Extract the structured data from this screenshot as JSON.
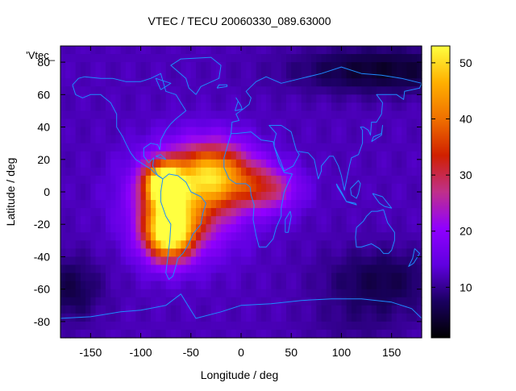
{
  "chart_data": {
    "type": "heatmap",
    "title": "VTEC / TECU 20060330_089.63000",
    "xlabel": "Longitude / deg",
    "ylabel": "Latitude / deg",
    "xlim": [
      -180,
      180
    ],
    "ylim": [
      -90,
      90
    ],
    "xticks": [
      -150,
      -100,
      -50,
      0,
      50,
      100,
      150
    ],
    "yticks": [
      80,
      60,
      40,
      20,
      0,
      -20,
      -40,
      -60,
      -80
    ],
    "series_label": "'Vtec_",
    "colorbar": {
      "range": [
        1,
        53
      ],
      "ticks": [
        10,
        20,
        30,
        40,
        50
      ],
      "palette": [
        "#000000",
        "#1a0060",
        "#6000e0",
        "#9000ff",
        "#c0308a",
        "#d02000",
        "#f07000",
        "#ffb000",
        "#ffff40"
      ]
    },
    "field": {
      "background": 12,
      "peaks": [
        {
          "lon": -72,
          "lat": -25,
          "value": 52,
          "sig_lon": 17,
          "sig_lat": 12
        },
        {
          "lon": -78,
          "lat": 5,
          "value": 48,
          "sig_lon": 13,
          "sig_lat": 9
        },
        {
          "lon": -25,
          "lat": 12,
          "value": 38,
          "sig_lon": 26,
          "sig_lat": 13
        },
        {
          "lon": -55,
          "lat": -5,
          "value": 36,
          "sig_lon": 34,
          "sig_lat": 20
        },
        {
          "lon": 25,
          "lat": 2,
          "value": 28,
          "sig_lon": 22,
          "sig_lat": 10
        }
      ],
      "lows": [
        {
          "lon": 115,
          "lat": -82,
          "value": 10,
          "sig_lon": 38,
          "sig_lat": 10
        },
        {
          "lon": 140,
          "lat": -55,
          "value": 6,
          "sig_lon": 40,
          "sig_lat": 14
        },
        {
          "lon": -170,
          "lat": -60,
          "value": 6,
          "sig_lon": 22,
          "sig_lat": 14
        },
        {
          "lon": 140,
          "lat": 75,
          "value": 4,
          "sig_lon": 60,
          "sig_lat": 10
        }
      ]
    },
    "coastlines": [
      [
        [
          -168,
          66
        ],
        [
          -162,
          70
        ],
        [
          -156,
          71
        ],
        [
          -140,
          70
        ],
        [
          -128,
          70
        ],
        [
          -115,
          68
        ],
        [
          -100,
          68
        ],
        [
          -90,
          70
        ],
        [
          -80,
          73
        ],
        [
          -75,
          62
        ],
        [
          -65,
          60
        ],
        [
          -60,
          55
        ],
        [
          -55,
          50
        ],
        [
          -65,
          45
        ],
        [
          -70,
          42
        ],
        [
          -75,
          38
        ],
        [
          -80,
          32
        ],
        [
          -81,
          26
        ],
        [
          -83,
          29
        ],
        [
          -90,
          30
        ],
        [
          -97,
          27
        ],
        [
          -97,
          22
        ],
        [
          -92,
          18
        ],
        [
          -87,
          21
        ],
        [
          -88,
          16
        ],
        [
          -83,
          10
        ],
        [
          -78,
          8
        ],
        [
          -80,
          9
        ],
        [
          -85,
          11
        ],
        [
          -90,
          14
        ],
        [
          -95,
          16
        ],
        [
          -105,
          20
        ],
        [
          -110,
          24
        ],
        [
          -115,
          30
        ],
        [
          -118,
          34
        ],
        [
          -124,
          40
        ],
        [
          -124,
          48
        ],
        [
          -130,
          55
        ],
        [
          -140,
          60
        ],
        [
          -150,
          60
        ],
        [
          -158,
          58
        ],
        [
          -165,
          60
        ],
        [
          -168,
          66
        ]
      ],
      [
        [
          -78,
          8
        ],
        [
          -72,
          11
        ],
        [
          -63,
          10
        ],
        [
          -55,
          6
        ],
        [
          -50,
          0
        ],
        [
          -40,
          -3
        ],
        [
          -35,
          -7
        ],
        [
          -38,
          -13
        ],
        [
          -40,
          -20
        ],
        [
          -48,
          -26
        ],
        [
          -53,
          -33
        ],
        [
          -58,
          -38
        ],
        [
          -63,
          -41
        ],
        [
          -65,
          -46
        ],
        [
          -68,
          -52
        ],
        [
          -72,
          -54
        ],
        [
          -75,
          -50
        ],
        [
          -73,
          -40
        ],
        [
          -71,
          -30
        ],
        [
          -70,
          -20
        ],
        [
          -75,
          -15
        ],
        [
          -80,
          -6
        ],
        [
          -80,
          0
        ],
        [
          -78,
          8
        ]
      ],
      [
        [
          -10,
          36
        ],
        [
          -17,
          21
        ],
        [
          -17,
          15
        ],
        [
          -12,
          8
        ],
        [
          -5,
          5
        ],
        [
          5,
          5
        ],
        [
          9,
          3
        ],
        [
          10,
          -2
        ],
        [
          13,
          -8
        ],
        [
          12,
          -17
        ],
        [
          15,
          -27
        ],
        [
          18,
          -34
        ],
        [
          25,
          -34
        ],
        [
          32,
          -29
        ],
        [
          35,
          -22
        ],
        [
          40,
          -15
        ],
        [
          40,
          -10
        ],
        [
          43,
          0
        ],
        [
          51,
          11
        ],
        [
          43,
          12
        ],
        [
          38,
          18
        ],
        [
          33,
          28
        ],
        [
          32,
          31
        ],
        [
          20,
          32
        ],
        [
          10,
          37
        ],
        [
          -5,
          36
        ],
        [
          -10,
          36
        ]
      ],
      [
        [
          -10,
          36
        ],
        [
          -9,
          43
        ],
        [
          -2,
          44
        ],
        [
          -5,
          48
        ],
        [
          2,
          51
        ],
        [
          8,
          54
        ],
        [
          10,
          58
        ],
        [
          5,
          62
        ],
        [
          15,
          68
        ],
        [
          25,
          71
        ],
        [
          40,
          67
        ],
        [
          60,
          70
        ],
        [
          80,
          73
        ],
        [
          100,
          77
        ],
        [
          120,
          73
        ],
        [
          140,
          72
        ],
        [
          160,
          70
        ],
        [
          180,
          67
        ]
      ],
      [
        [
          33,
          31
        ],
        [
          35,
          36
        ],
        [
          28,
          41
        ],
        [
          40,
          41
        ],
        [
          50,
          37
        ],
        [
          55,
          26
        ],
        [
          58,
          23
        ],
        [
          52,
          16
        ],
        [
          43,
          13
        ],
        [
          38,
          21
        ],
        [
          33,
          28
        ],
        [
          33,
          31
        ]
      ],
      [
        [
          57,
          25
        ],
        [
          67,
          24
        ],
        [
          73,
          20
        ],
        [
          77,
          8
        ],
        [
          80,
          13
        ],
        [
          80,
          16
        ],
        [
          88,
          22
        ],
        [
          92,
          22
        ],
        [
          97,
          16
        ],
        [
          100,
          10
        ],
        [
          103,
          1
        ],
        [
          106,
          10
        ],
        [
          108,
          16
        ],
        [
          110,
          21
        ],
        [
          117,
          23
        ],
        [
          121,
          30
        ],
        [
          121,
          38
        ],
        [
          119,
          40
        ],
        [
          122,
          40
        ],
        [
          127,
          38
        ],
        [
          129,
          35
        ],
        [
          130,
          43
        ],
        [
          135,
          43
        ],
        [
          140,
          48
        ],
        [
          141,
          55
        ],
        [
          135,
          60
        ],
        [
          143,
          60
        ],
        [
          155,
          60
        ],
        [
          162,
          57
        ],
        [
          163,
          62
        ],
        [
          178,
          64
        ],
        [
          180,
          67
        ]
      ],
      [
        [
          115,
          -22
        ],
        [
          114,
          -28
        ],
        [
          115,
          -34
        ],
        [
          120,
          -34
        ],
        [
          130,
          -32
        ],
        [
          138,
          -35
        ],
        [
          142,
          -38
        ],
        [
          147,
          -38
        ],
        [
          150,
          -36
        ],
        [
          153,
          -30
        ],
        [
          153,
          -25
        ],
        [
          146,
          -19
        ],
        [
          142,
          -11
        ],
        [
          136,
          -12
        ],
        [
          130,
          -12
        ],
        [
          125,
          -15
        ],
        [
          122,
          -18
        ],
        [
          115,
          -22
        ]
      ],
      [
        [
          -180,
          -78
        ],
        [
          -150,
          -77
        ],
        [
          -120,
          -74
        ],
        [
          -100,
          -73
        ],
        [
          -75,
          -70
        ],
        [
          -60,
          -63
        ],
        [
          -58,
          -65
        ],
        [
          -45,
          -78
        ],
        [
          -20,
          -74
        ],
        [
          0,
          -70
        ],
        [
          30,
          -69
        ],
        [
          60,
          -67
        ],
        [
          90,
          -66
        ],
        [
          120,
          -66
        ],
        [
          150,
          -68
        ],
        [
          170,
          -72
        ],
        [
          180,
          -78
        ]
      ],
      [
        [
          -45,
          60
        ],
        [
          -52,
          64
        ],
        [
          -55,
          70
        ],
        [
          -70,
          78
        ],
        [
          -60,
          82
        ],
        [
          -30,
          83
        ],
        [
          -20,
          78
        ],
        [
          -22,
          70
        ],
        [
          -40,
          65
        ],
        [
          -45,
          60
        ]
      ],
      [
        [
          -6,
          50
        ],
        [
          -3,
          56
        ],
        [
          -5,
          58
        ],
        [
          0,
          53
        ],
        [
          1,
          51
        ],
        [
          -6,
          50
        ]
      ],
      [
        [
          130,
          31
        ],
        [
          132,
          34
        ],
        [
          136,
          35
        ],
        [
          140,
          36
        ],
        [
          141,
          41
        ],
        [
          140,
          35
        ],
        [
          135,
          33
        ],
        [
          130,
          31
        ]
      ],
      [
        [
          95,
          5
        ],
        [
          100,
          0
        ],
        [
          105,
          -6
        ],
        [
          102,
          -3
        ],
        [
          96,
          3
        ],
        [
          95,
          5
        ]
      ],
      [
        [
          105,
          -6
        ],
        [
          115,
          -8
        ],
        [
          114,
          -7
        ],
        [
          106,
          -6
        ],
        [
          105,
          -6
        ]
      ],
      [
        [
          109,
          2
        ],
        [
          117,
          7
        ],
        [
          119,
          5
        ],
        [
          117,
          -1
        ],
        [
          115,
          -4
        ],
        [
          110,
          -2
        ],
        [
          109,
          2
        ]
      ],
      [
        [
          131,
          -1
        ],
        [
          141,
          -3
        ],
        [
          150,
          -10
        ],
        [
          143,
          -9
        ],
        [
          138,
          -7
        ],
        [
          131,
          -1
        ]
      ],
      [
        [
          44,
          -25
        ],
        [
          47,
          -25
        ],
        [
          50,
          -15
        ],
        [
          49,
          -12
        ],
        [
          44,
          -17
        ],
        [
          44,
          -25
        ]
      ],
      [
        [
          -24,
          64
        ],
        [
          -14,
          65
        ],
        [
          -14,
          66
        ],
        [
          -22,
          66
        ],
        [
          -24,
          64
        ]
      ],
      [
        [
          173,
          -35
        ],
        [
          178,
          -38
        ],
        [
          172,
          -44
        ],
        [
          167,
          -46
        ],
        [
          171,
          -41
        ],
        [
          173,
          -35
        ]
      ],
      [
        [
          -85,
          22
        ],
        [
          -75,
          20
        ],
        [
          -80,
          23
        ],
        [
          -85,
          22
        ]
      ],
      [
        [
          -80,
          63
        ],
        [
          -70,
          67
        ],
        [
          -85,
          70
        ],
        [
          -80,
          63
        ]
      ]
    ]
  }
}
